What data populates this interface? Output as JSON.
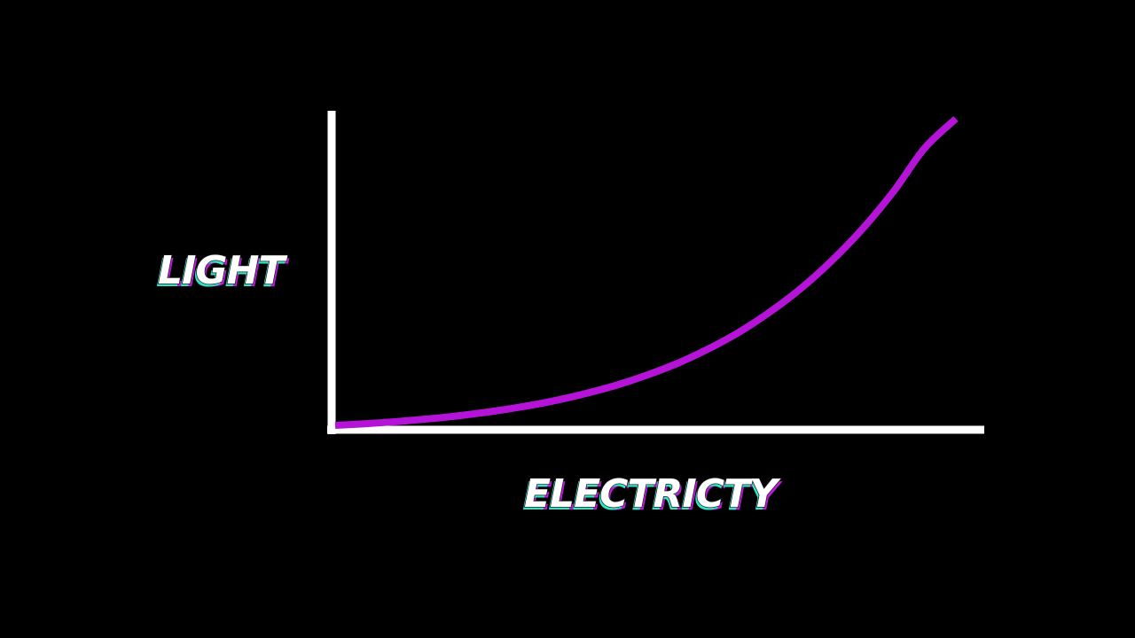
{
  "chart_data": {
    "type": "line",
    "xlabel": "ELECTRICTY",
    "ylabel": "LIGHT",
    "xlim": [
      0,
      1
    ],
    "ylim": [
      0,
      1
    ],
    "grid": false,
    "series": [
      {
        "color": "#b514d8",
        "x": [
          0,
          0.05,
          0.1,
          0.15,
          0.2,
          0.25,
          0.3,
          0.35,
          0.4,
          0.45,
          0.5,
          0.55,
          0.6,
          0.65,
          0.7,
          0.75,
          0.8,
          0.85,
          0.9,
          0.95,
          1.0
        ],
        "y": [
          0,
          0.0055,
          0.0125,
          0.021,
          0.0315,
          0.0445,
          0.06,
          0.079,
          0.102,
          0.129,
          0.162,
          0.201,
          0.248,
          0.303,
          0.369,
          0.446,
          0.537,
          0.642,
          0.764,
          0.905,
          1.0
        ]
      }
    ]
  },
  "colors": {
    "background": "#000000",
    "axis": "#ffffff",
    "curve": "#b514d8",
    "label_fill": "#ffffff",
    "label_shadow_cyan": "#2ee6c8",
    "label_shadow_magenta": "#c018e0"
  }
}
